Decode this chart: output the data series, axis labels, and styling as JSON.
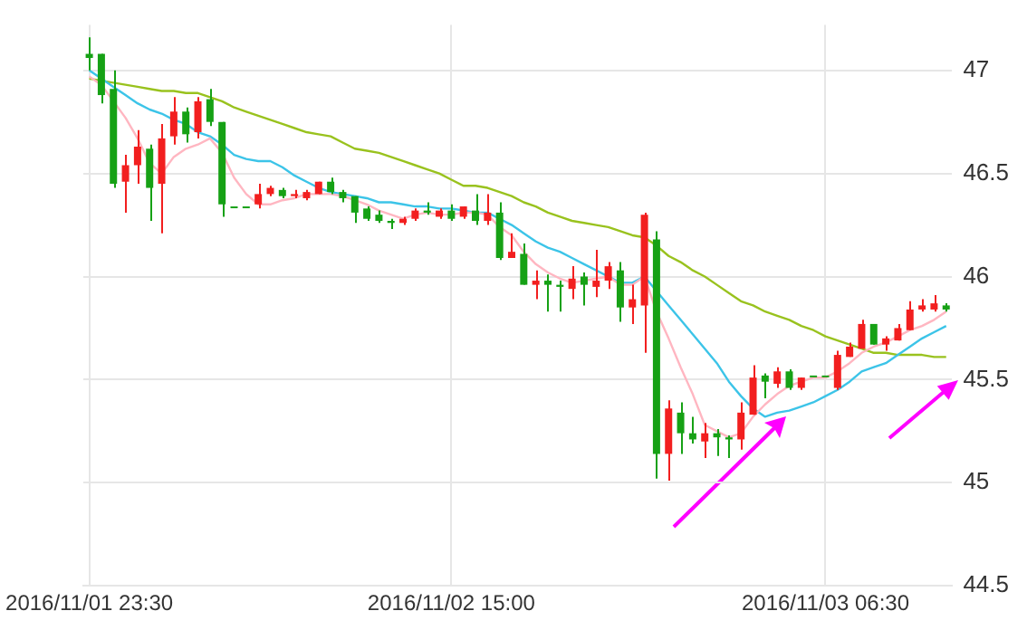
{
  "chart_data": {
    "type": "candlestick",
    "categories": [
      "2016/11/01 23:30",
      null,
      null,
      null,
      null,
      null,
      null,
      null,
      null,
      null,
      null,
      null,
      null,
      null,
      null,
      null,
      null,
      null,
      null,
      null,
      null,
      null,
      null,
      null,
      null,
      null,
      null,
      null,
      null,
      null,
      "2016/11/02 15:00",
      null,
      null,
      null,
      null,
      null,
      null,
      null,
      null,
      null,
      null,
      null,
      null,
      null,
      null,
      null,
      null,
      null,
      null,
      null,
      null,
      null,
      null,
      null,
      null,
      null,
      null,
      null,
      null,
      null,
      null,
      "2016/11/03 06:30",
      null,
      null,
      null,
      null,
      null,
      null,
      null,
      null,
      null,
      null
    ],
    "ohlc": [
      [
        47.08,
        47.16,
        47.0,
        47.06
      ],
      [
        47.08,
        47.08,
        46.84,
        46.88
      ],
      [
        46.91,
        47.0,
        46.43,
        46.45
      ],
      [
        46.46,
        46.59,
        46.31,
        46.54
      ],
      [
        46.54,
        46.71,
        46.45,
        46.63
      ],
      [
        46.62,
        46.64,
        46.27,
        46.43
      ],
      [
        46.45,
        46.74,
        46.21,
        46.67
      ],
      [
        46.68,
        46.87,
        46.64,
        46.8
      ],
      [
        46.8,
        46.82,
        46.65,
        46.69
      ],
      [
        46.7,
        46.87,
        46.67,
        46.85
      ],
      [
        46.86,
        46.91,
        46.73,
        46.75
      ],
      [
        46.75,
        46.75,
        46.29,
        46.35
      ],
      [
        46.34,
        46.34,
        46.34,
        46.34
      ],
      [
        46.34,
        46.34,
        46.34,
        46.34
      ],
      [
        46.35,
        46.45,
        46.33,
        46.4
      ],
      [
        46.4,
        46.44,
        46.39,
        46.43
      ],
      [
        46.42,
        46.43,
        46.38,
        46.39
      ],
      [
        46.39,
        46.42,
        46.38,
        46.4
      ],
      [
        46.38,
        46.42,
        46.37,
        46.41
      ],
      [
        46.4,
        46.46,
        46.4,
        46.46
      ],
      [
        46.46,
        46.48,
        46.4,
        46.41
      ],
      [
        46.41,
        46.42,
        46.36,
        46.38
      ],
      [
        46.39,
        46.39,
        46.26,
        46.31
      ],
      [
        46.33,
        46.34,
        46.27,
        46.28
      ],
      [
        46.3,
        46.32,
        46.26,
        46.27
      ],
      [
        46.27,
        46.28,
        46.23,
        46.26
      ],
      [
        46.26,
        46.29,
        46.25,
        46.28
      ],
      [
        46.28,
        46.33,
        46.27,
        46.32
      ],
      [
        46.32,
        46.36,
        46.3,
        46.31
      ],
      [
        46.29,
        46.33,
        46.28,
        46.32
      ],
      [
        46.32,
        46.35,
        46.27,
        46.28
      ],
      [
        46.29,
        46.34,
        46.28,
        46.34
      ],
      [
        46.32,
        46.4,
        46.25,
        46.27
      ],
      [
        46.27,
        46.4,
        46.25,
        46.31
      ],
      [
        46.31,
        46.36,
        46.08,
        46.09
      ],
      [
        46.09,
        46.21,
        46.09,
        46.12
      ],
      [
        46.11,
        46.16,
        45.96,
        45.96
      ],
      [
        45.96,
        46.03,
        45.89,
        45.98
      ],
      [
        45.98,
        46.01,
        45.83,
        45.96
      ],
      [
        45.96,
        45.98,
        45.83,
        45.95
      ],
      [
        45.94,
        46.05,
        45.89,
        45.99
      ],
      [
        46.0,
        46.02,
        45.86,
        45.96
      ],
      [
        45.95,
        46.13,
        45.9,
        45.98
      ],
      [
        45.98,
        46.07,
        45.94,
        46.05
      ],
      [
        46.03,
        46.07,
        45.78,
        45.85
      ],
      [
        45.85,
        45.96,
        45.77,
        45.89
      ],
      [
        45.86,
        46.31,
        45.63,
        46.3
      ],
      [
        46.18,
        46.22,
        45.02,
        45.14
      ],
      [
        45.14,
        45.4,
        45.01,
        45.36
      ],
      [
        45.34,
        45.39,
        45.14,
        45.24
      ],
      [
        45.24,
        45.32,
        45.19,
        45.21
      ],
      [
        45.2,
        45.29,
        45.12,
        45.24
      ],
      [
        45.24,
        45.26,
        45.13,
        45.22
      ],
      [
        45.22,
        45.23,
        45.12,
        45.21
      ],
      [
        45.21,
        45.39,
        45.16,
        45.34
      ],
      [
        45.33,
        45.57,
        45.33,
        45.51
      ],
      [
        45.52,
        45.53,
        45.41,
        45.49
      ],
      [
        45.48,
        45.56,
        45.46,
        45.54
      ],
      [
        45.54,
        45.55,
        45.45,
        45.46
      ],
      [
        45.46,
        45.51,
        45.45,
        45.51
      ],
      [
        45.52,
        45.52,
        45.52,
        45.52
      ],
      [
        45.52,
        45.52,
        45.52,
        45.52
      ],
      [
        45.46,
        45.64,
        45.45,
        45.62
      ],
      [
        45.61,
        45.68,
        45.61,
        45.66
      ],
      [
        45.65,
        45.79,
        45.65,
        45.77
      ],
      [
        45.77,
        45.77,
        45.67,
        45.67
      ],
      [
        45.67,
        45.71,
        45.64,
        45.7
      ],
      [
        45.69,
        45.77,
        45.69,
        45.75
      ],
      [
        45.74,
        45.88,
        45.74,
        45.84
      ],
      [
        45.84,
        45.89,
        45.83,
        45.86
      ],
      [
        45.84,
        45.91,
        45.83,
        45.87
      ],
      [
        45.86,
        45.87,
        45.83,
        45.84
      ]
    ],
    "colors": [
      "#16a115",
      "#16a115",
      "#16a115",
      "#f21f1f",
      "#f21f1f",
      "#16a115",
      "#f21f1f",
      "#f21f1f",
      "#16a115",
      "#f21f1f",
      "#16a115",
      "#16a115",
      "#16a115",
      "#16a115",
      "#f21f1f",
      "#f21f1f",
      "#16a115",
      "#f21f1f",
      "#f21f1f",
      "#f21f1f",
      "#16a115",
      "#16a115",
      "#16a115",
      "#16a115",
      "#16a115",
      "#16a115",
      "#f21f1f",
      "#f21f1f",
      "#16a115",
      "#f21f1f",
      "#16a115",
      "#f21f1f",
      "#16a115",
      "#f21f1f",
      "#16a115",
      "#f21f1f",
      "#16a115",
      "#f21f1f",
      "#16a115",
      "#16a115",
      "#f21f1f",
      "#16a115",
      "#f21f1f",
      "#f21f1f",
      "#16a115",
      "#f21f1f",
      "#f21f1f",
      "#16a115",
      "#f21f1f",
      "#16a115",
      "#16a115",
      "#f21f1f",
      "#16a115",
      "#16a115",
      "#f21f1f",
      "#f21f1f",
      "#16a115",
      "#f21f1f",
      "#16a115",
      "#f21f1f",
      "#16a115",
      "#16a115",
      "#f21f1f",
      "#f21f1f",
      "#f21f1f",
      "#16a115",
      "#f21f1f",
      "#f21f1f",
      "#f21f1f",
      "#f21f1f",
      "#f21f1f",
      "#16a115"
    ],
    "series": [
      {
        "type": "line",
        "color": "#ffb6c1",
        "values": [
          46.97,
          46.93,
          46.85,
          46.77,
          46.67,
          46.55,
          46.5,
          46.58,
          46.62,
          46.64,
          46.67,
          46.6,
          46.48,
          46.4,
          46.35,
          46.35,
          46.37,
          46.38,
          46.4,
          46.4,
          46.4,
          46.39,
          46.37,
          46.35,
          46.32,
          46.3,
          46.28,
          46.3,
          46.31,
          46.3,
          46.3,
          46.31,
          46.31,
          46.3,
          46.24,
          46.2,
          46.12,
          46.06,
          46.02,
          45.99,
          45.97,
          45.98,
          45.99,
          46.0,
          45.96,
          45.96,
          46.0,
          45.83,
          45.7,
          45.56,
          45.43,
          45.28,
          45.25,
          45.22,
          45.24,
          45.32,
          45.38,
          45.43,
          45.47,
          45.49,
          45.51,
          45.51,
          45.54,
          45.58,
          45.63,
          45.66,
          45.68,
          45.71,
          45.74,
          45.76,
          45.79,
          45.83
        ]
      },
      {
        "type": "line",
        "color": "#3cc4e8",
        "values": [
          47.0,
          46.96,
          46.92,
          46.88,
          46.84,
          46.81,
          46.79,
          46.76,
          46.74,
          46.7,
          46.68,
          46.64,
          46.59,
          46.57,
          46.56,
          46.56,
          46.53,
          46.49,
          46.46,
          46.43,
          46.41,
          46.4,
          46.39,
          46.38,
          46.36,
          46.36,
          46.35,
          46.34,
          46.34,
          46.33,
          46.33,
          46.32,
          46.31,
          46.31,
          46.28,
          46.25,
          46.21,
          46.17,
          46.14,
          46.12,
          46.09,
          46.06,
          46.03,
          46.0,
          45.97,
          45.97,
          46.0,
          45.93,
          45.86,
          45.79,
          45.72,
          45.65,
          45.58,
          45.49,
          45.42,
          45.36,
          45.32,
          45.34,
          45.35,
          45.37,
          45.39,
          45.42,
          45.45,
          45.49,
          45.54,
          45.56,
          45.58,
          45.62,
          45.66,
          45.7,
          45.73,
          45.76
        ]
      },
      {
        "type": "line",
        "color": "#99c21e",
        "values": [
          46.96,
          46.95,
          46.94,
          46.93,
          46.92,
          46.91,
          46.9,
          46.9,
          46.89,
          46.89,
          46.87,
          46.85,
          46.82,
          46.8,
          46.78,
          46.76,
          46.74,
          46.72,
          46.7,
          46.69,
          46.68,
          46.65,
          46.62,
          46.61,
          46.6,
          46.58,
          46.56,
          46.54,
          46.52,
          46.5,
          46.47,
          46.44,
          46.44,
          46.43,
          46.41,
          46.39,
          46.36,
          46.34,
          46.31,
          46.29,
          46.27,
          46.26,
          46.25,
          46.24,
          46.22,
          46.2,
          46.19,
          46.15,
          46.1,
          46.07,
          46.03,
          46.0,
          45.96,
          45.92,
          45.88,
          45.86,
          45.83,
          45.81,
          45.79,
          45.76,
          45.74,
          45.71,
          45.69,
          45.67,
          45.65,
          45.63,
          45.63,
          45.62,
          45.62,
          45.62,
          45.61,
          45.61
        ]
      }
    ],
    "ylim": [
      44.5,
      47.22
    ],
    "yticks": [
      44.5,
      45,
      45.5,
      46,
      46.5,
      47
    ],
    "grid": true,
    "legend": false,
    "marker": "none"
  }
}
